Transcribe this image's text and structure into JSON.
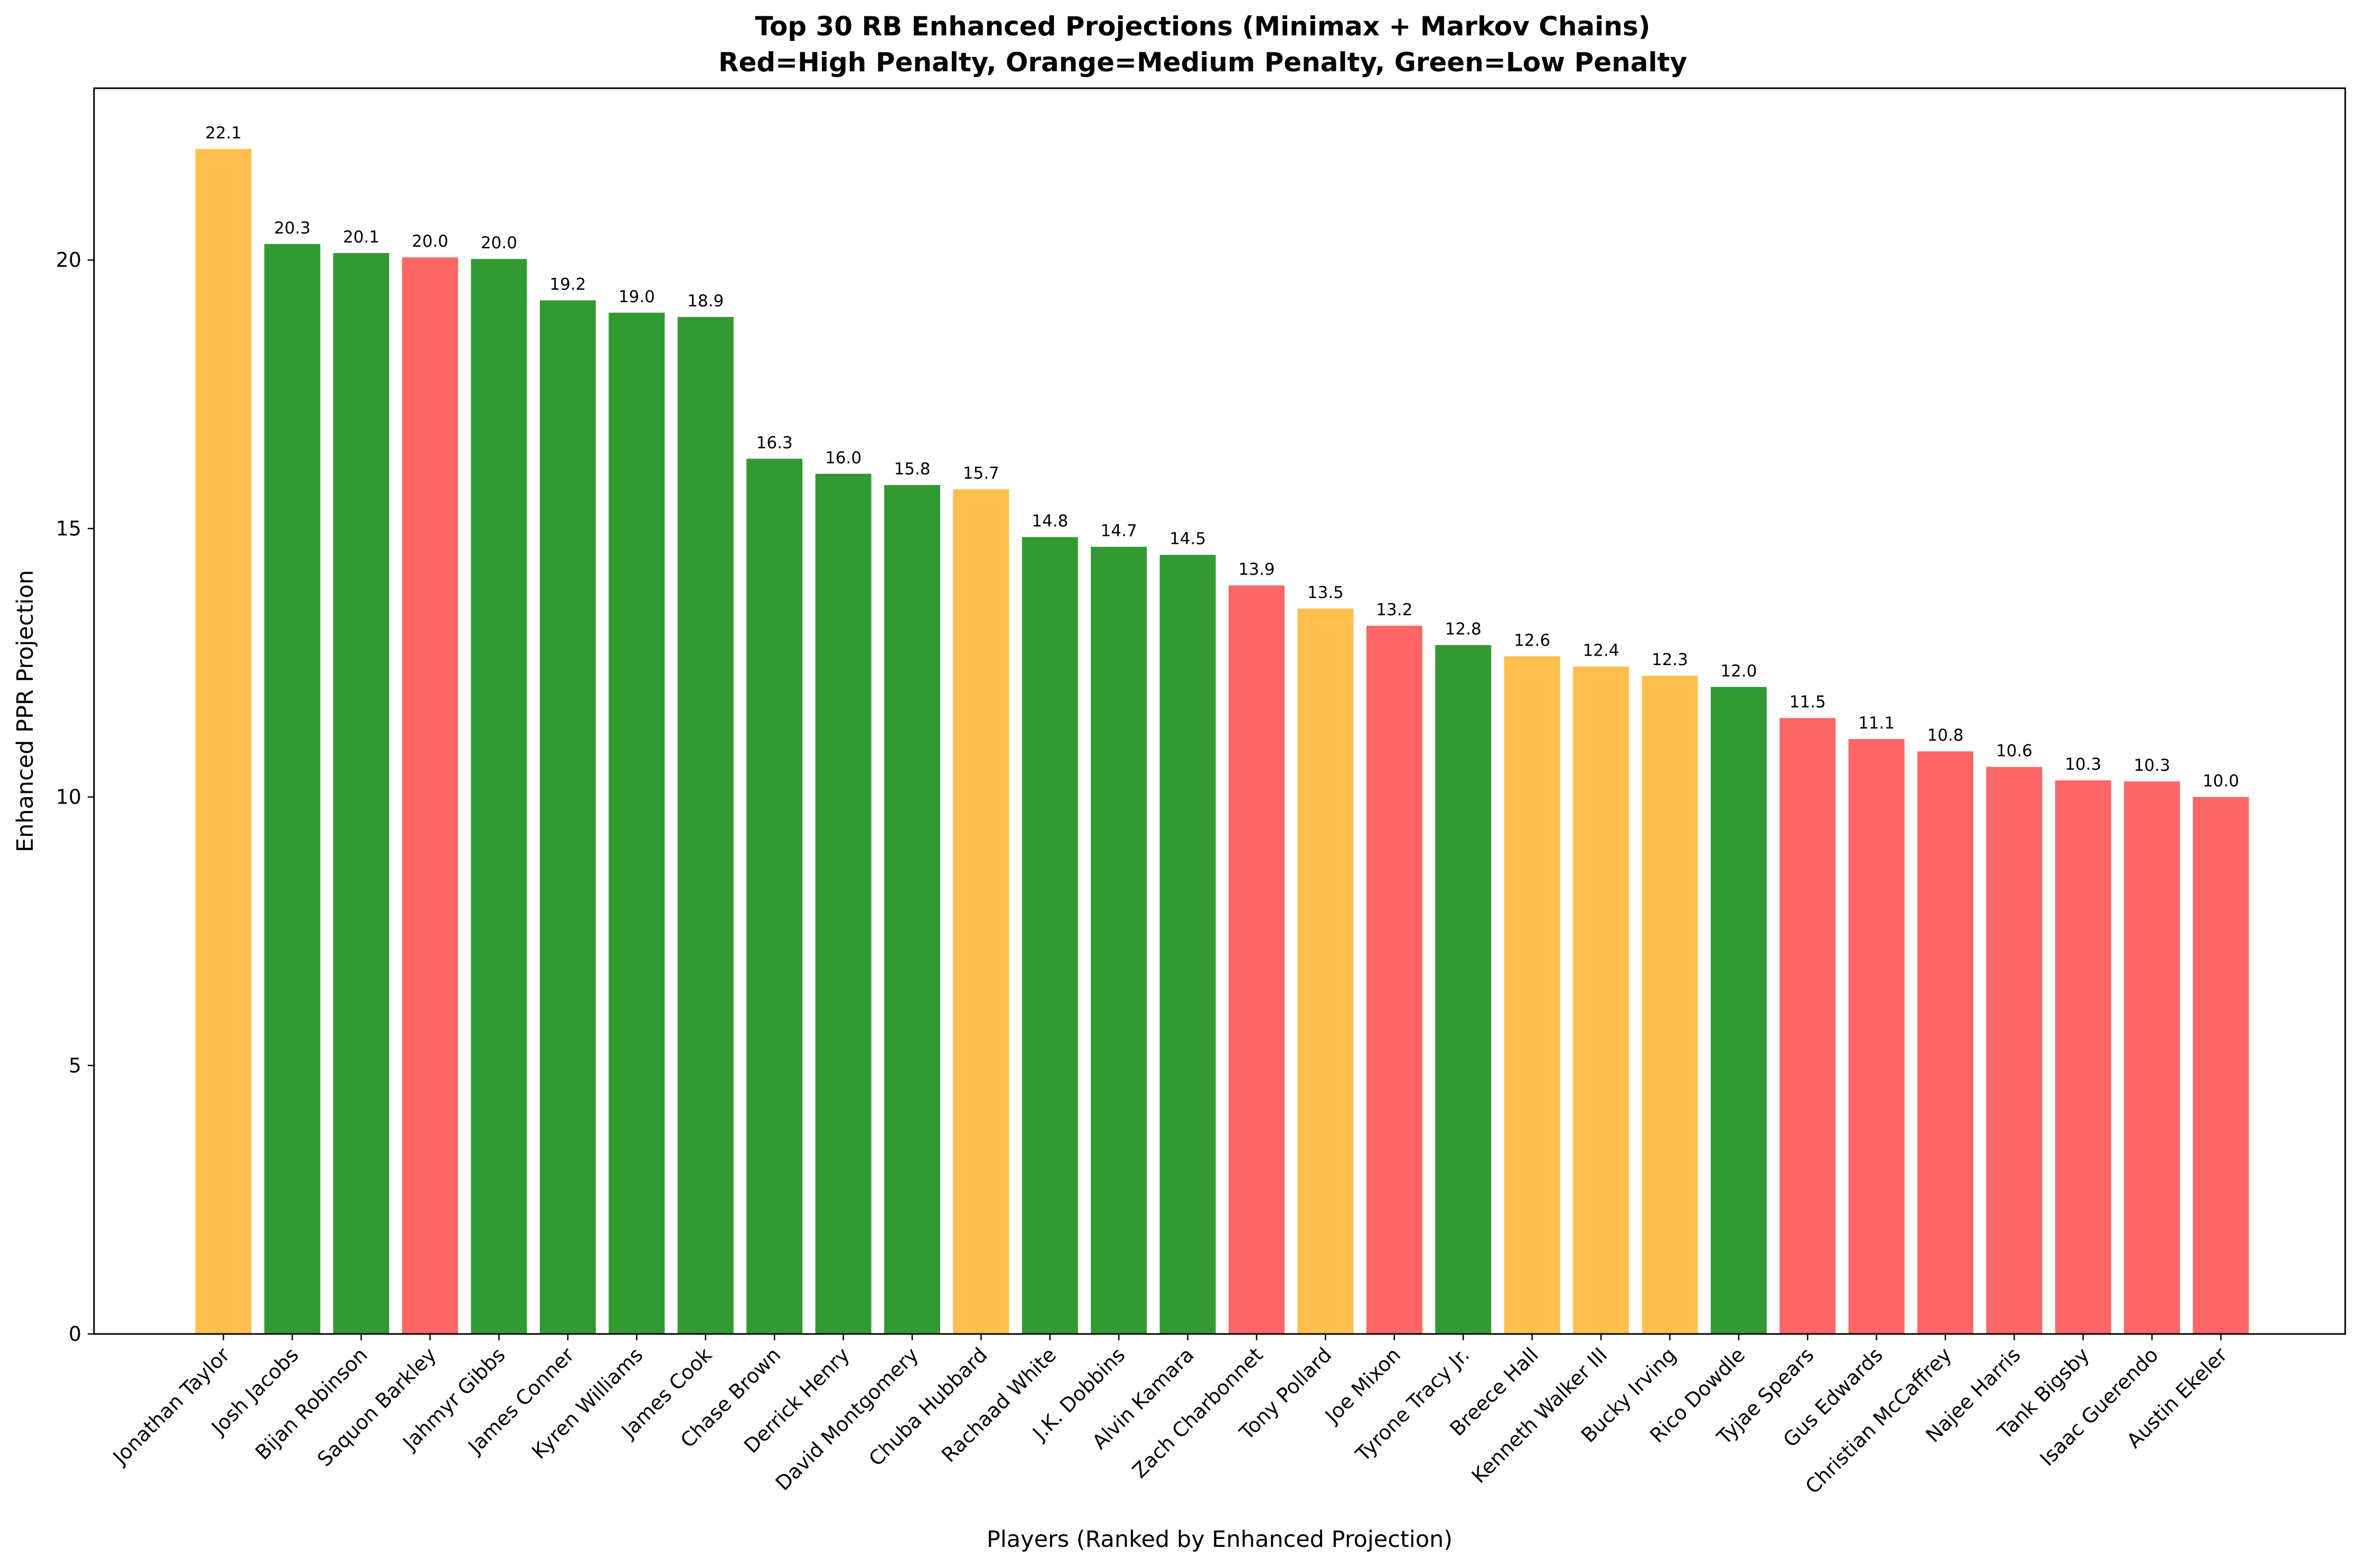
{
  "chart_data": {
    "type": "bar",
    "title": "Top 30 RB Enhanced Projections (Minimax + Markov Chains)",
    "subtitle": "Red=High Penalty, Orange=Medium Penalty, Green=Low Penalty",
    "xlabel": "Players (Ranked by Enhanced Projection)",
    "ylabel": "Enhanced PPR Projection",
    "ylim": [
      0,
      23.2
    ],
    "yticks": [
      0,
      5,
      10,
      15,
      20
    ],
    "grid": false,
    "legend": "none",
    "colors": {
      "high": "#ff6666",
      "medium": "#ffbf4d",
      "low": "#339933"
    },
    "categories": [
      "Jonathan Taylor",
      "Josh Jacobs",
      "Bijan Robinson",
      "Saquon Barkley",
      "Jahmyr Gibbs",
      "James Conner",
      "Kyren Williams",
      "James Cook",
      "Chase Brown",
      "Derrick Henry",
      "David Montgomery",
      "Chuba Hubbard",
      "Rachaad White",
      "J.K. Dobbins",
      "Alvin Kamara",
      "Zach Charbonnet",
      "Tony Pollard",
      "Joe Mixon",
      "Tyrone Tracy Jr.",
      "Breece Hall",
      "Kenneth Walker III",
      "Bucky Irving",
      "Rico Dowdle",
      "Tyjae Spears",
      "Gus Edwards",
      "Christian McCaffrey",
      "Najee Harris",
      "Tank Bigsby",
      "Isaac Guerendo",
      "Austin Ekeler"
    ],
    "values": [
      22.07,
      20.3,
      20.13,
      20.05,
      20.02,
      19.25,
      19.02,
      18.94,
      16.3,
      16.02,
      15.81,
      15.73,
      14.84,
      14.66,
      14.51,
      13.94,
      13.51,
      13.19,
      12.83,
      12.62,
      12.43,
      12.26,
      12.05,
      11.47,
      11.08,
      10.85,
      10.56,
      10.31,
      10.29,
      10.0
    ],
    "labels": [
      "22.1",
      "20.3",
      "20.1",
      "20.0",
      "20.0",
      "19.2",
      "19.0",
      "18.9",
      "16.3",
      "16.0",
      "15.8",
      "15.7",
      "14.8",
      "14.7",
      "14.5",
      "13.9",
      "13.5",
      "13.2",
      "12.8",
      "12.6",
      "12.4",
      "12.3",
      "12.0",
      "11.5",
      "11.1",
      "10.8",
      "10.6",
      "10.3",
      "10.3",
      "10.0"
    ],
    "penalty": [
      "medium",
      "low",
      "low",
      "high",
      "low",
      "low",
      "low",
      "low",
      "low",
      "low",
      "low",
      "medium",
      "low",
      "low",
      "low",
      "high",
      "medium",
      "high",
      "low",
      "medium",
      "medium",
      "medium",
      "low",
      "high",
      "high",
      "high",
      "high",
      "high",
      "high",
      "high"
    ]
  }
}
